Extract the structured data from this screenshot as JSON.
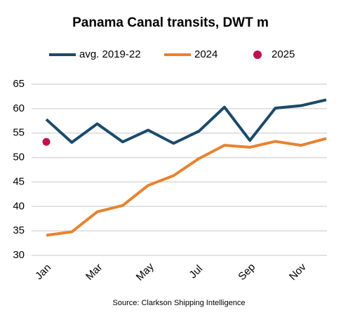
{
  "chart_data": {
    "type": "line",
    "title": "Panama Canal transits, DWT m",
    "categories": [
      "Jan",
      null,
      "Mar",
      null,
      "May",
      null,
      "Jul",
      null,
      "Sep",
      null,
      "Nov",
      null
    ],
    "series": [
      {
        "name": "avg. 2019-22",
        "color": "#1b4a6b",
        "mode": "line",
        "values": [
          57.8,
          53.1,
          56.9,
          53.2,
          55.6,
          52.9,
          55.4,
          60.3,
          53.5,
          60.1,
          60.6,
          61.8
        ]
      },
      {
        "name": "2024",
        "color": "#e9822f",
        "mode": "line",
        "values": [
          34.1,
          34.8,
          38.9,
          40.2,
          44.3,
          46.3,
          49.8,
          52.5,
          52.1,
          53.3,
          52.5,
          53.9
        ]
      },
      {
        "name": "2025",
        "color": "#c0104f",
        "mode": "marker",
        "values": [
          53.2,
          null,
          null,
          null,
          null,
          null,
          null,
          null,
          null,
          null,
          null,
          null
        ]
      }
    ],
    "ylim": [
      30,
      65
    ],
    "yticks": [
      30,
      35,
      40,
      45,
      50,
      55,
      60,
      65
    ],
    "grid": true,
    "legend": "top",
    "source": "Source: Clarkson Shipping Intelligence"
  }
}
